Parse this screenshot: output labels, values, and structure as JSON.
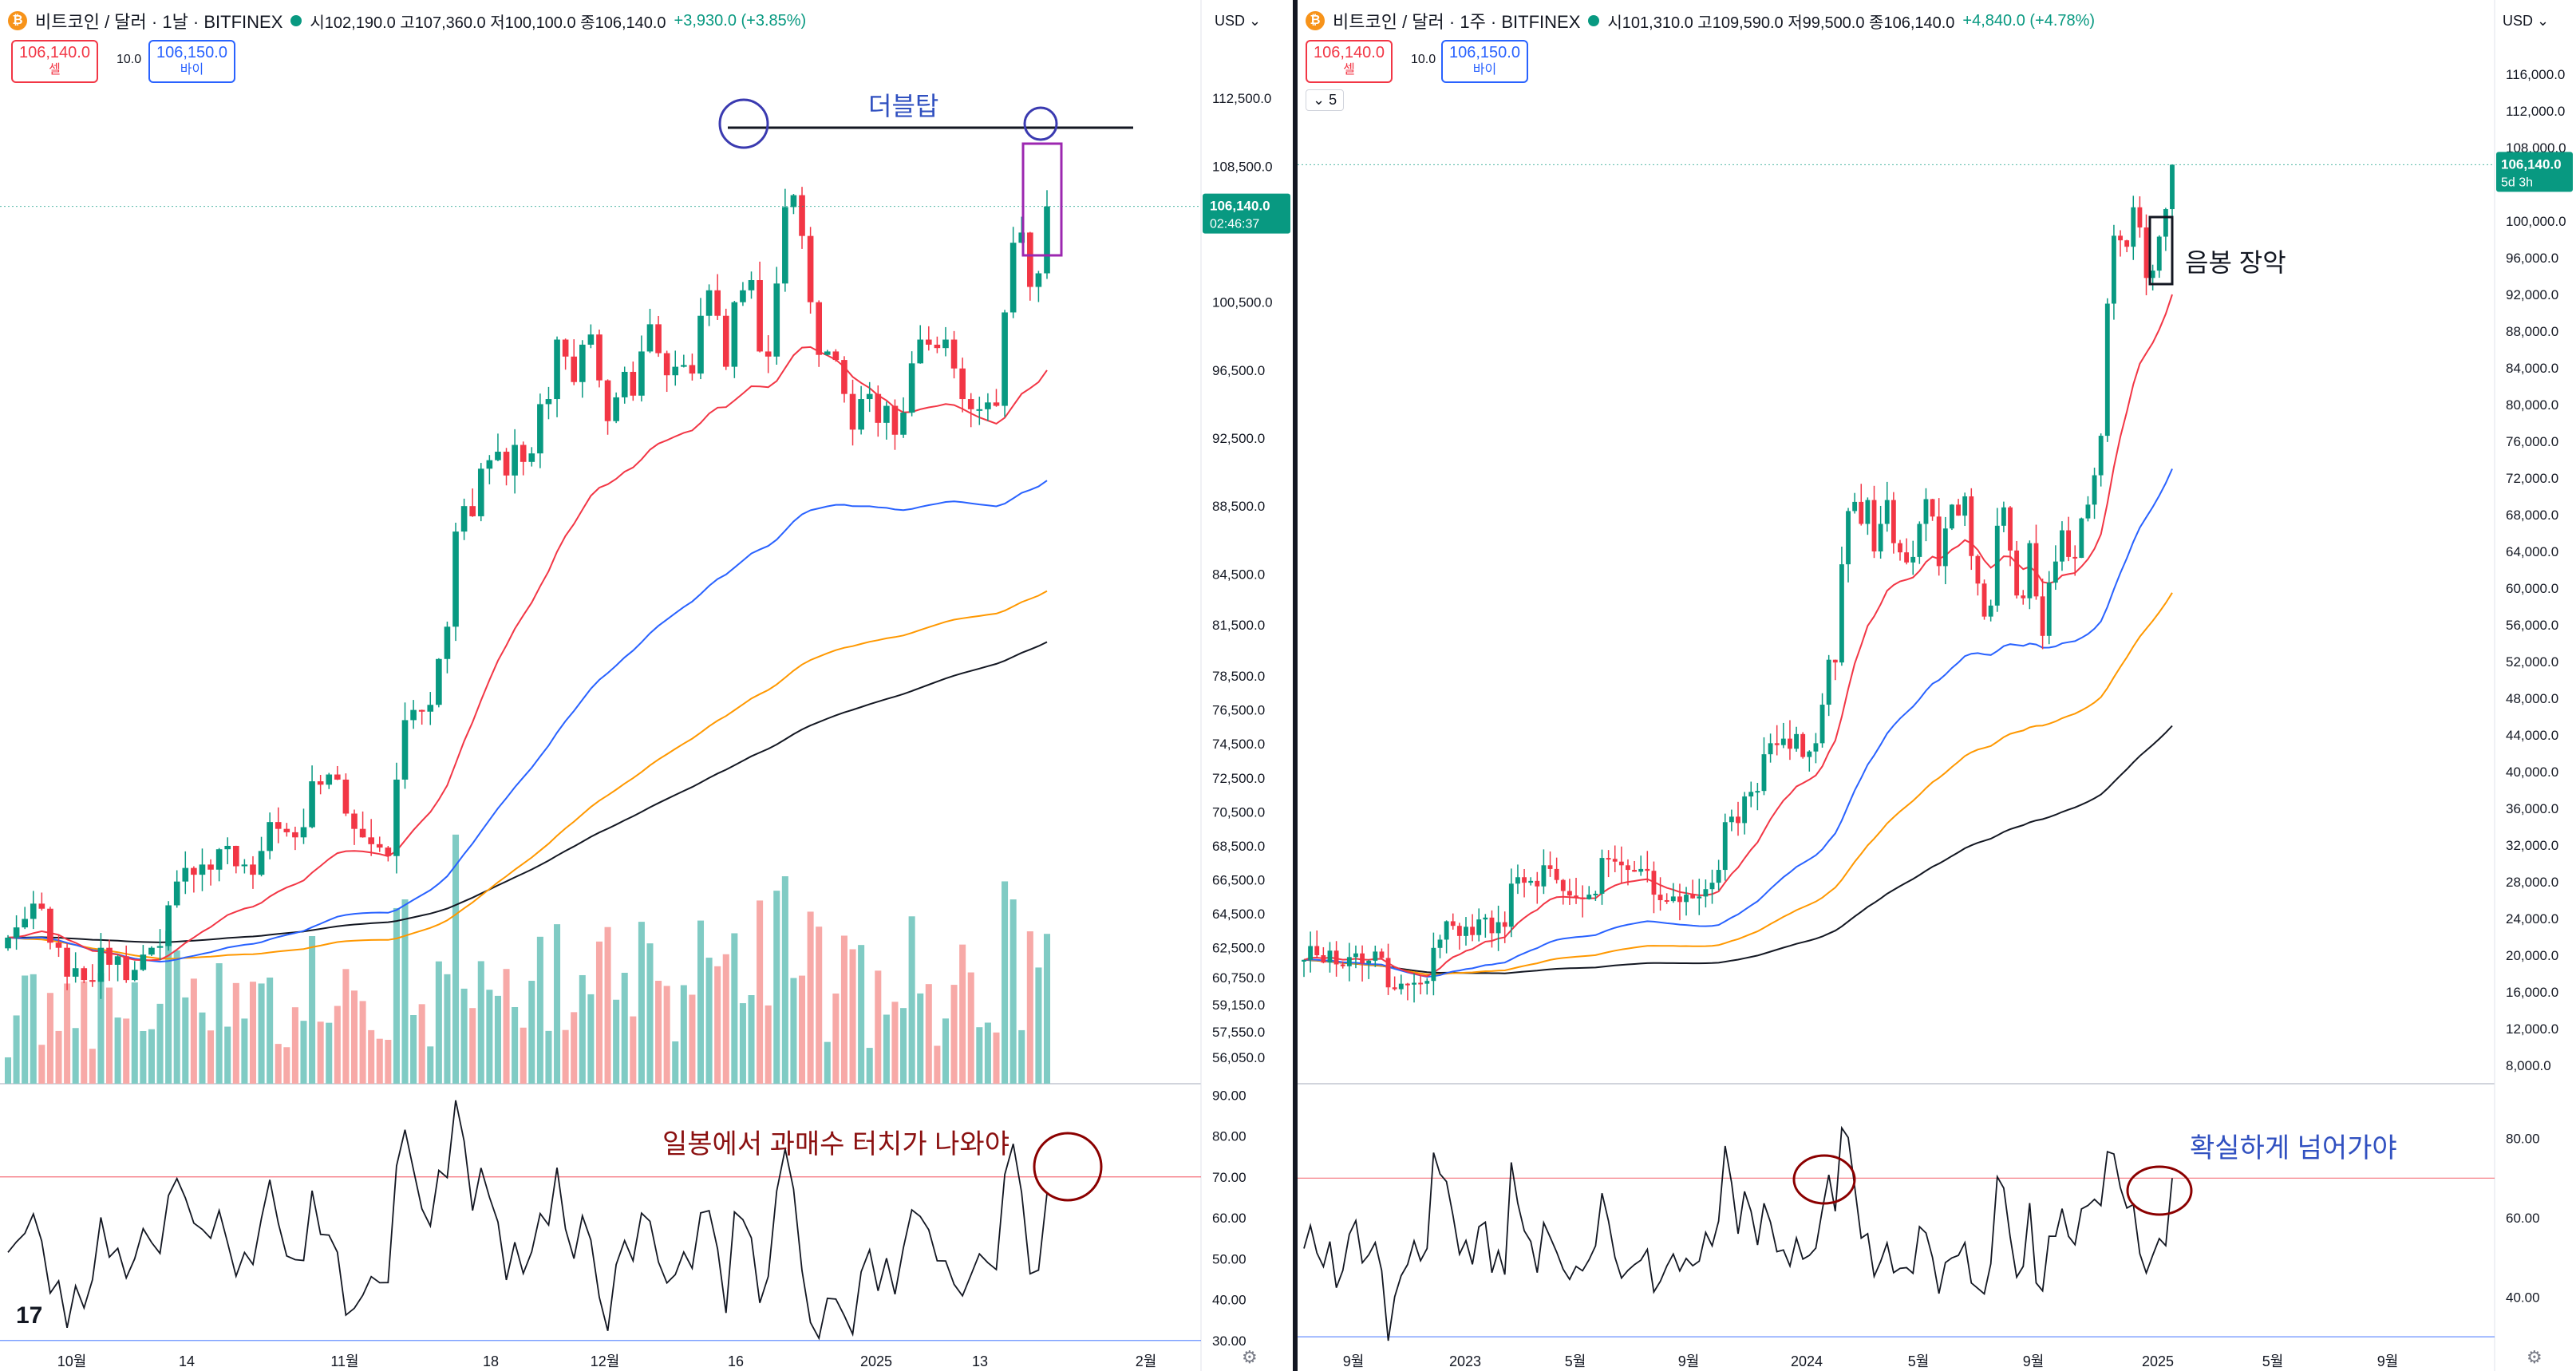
{
  "left": {
    "symbol": "비트코인 / 달러 · 1날 · BITFINEX",
    "ohlc_line": "시102,190.0 고107,360.0 저100,100.0 종106,140.0",
    "change": "+3,930.0 (+3.85%)",
    "sell_price": "106,140.0",
    "sell_label": "셀",
    "spread": "10.0",
    "buy_price": "106,150.0",
    "buy_label": "바이",
    "currency": "USD",
    "last_price": "106,140.0",
    "countdown": "02:46:37",
    "annotation_double_top": "더블탑",
    "annotation_rsi": "일봉에서 과매수 터치가 나와야"
  },
  "right": {
    "symbol": "비트코인 / 달러 · 1주 · BITFINEX",
    "ohlc_line": "시101,310.0 고109,590.0 저99,500.0 종106,140.0",
    "change": "+4,840.0 (+4.78%)",
    "sell_price": "106,140.0",
    "sell_label": "셀",
    "spread": "10.0",
    "buy_price": "106,150.0",
    "buy_label": "바이",
    "currency": "USD",
    "interval_badge": "5",
    "last_price": "106,140.0",
    "countdown": "5d 3h",
    "annotation_bear_candle": "음봉 장악",
    "annotation_rsi": "확실하게 넘어가야"
  },
  "colors": {
    "up": "#089981",
    "down": "#f23645",
    "ema20": "#f23645",
    "ema50": "#2962ff",
    "ema100": "#ff9800",
    "ema200": "#131722",
    "rsi_line": "#131722",
    "anno_blue": "#3050c0",
    "anno_red": "#8b0000"
  },
  "chart_data": [
    {
      "type": "candlestick",
      "title": "비트코인 / 달러 · 1날 · BITFINEX",
      "timeframe": "1D",
      "ylim": [
        54500,
        115000
      ],
      "y_ticks": [
        "112,500.0",
        "108,500.0",
        "100,500.0",
        "96,500.0",
        "92,500.0",
        "88,500.0",
        "84,500.0",
        "81,500.0",
        "78,500.0",
        "76,500.0",
        "74,500.0",
        "72,500.0",
        "70,500.0",
        "68,500.0",
        "66,500.0",
        "64,500.0",
        "62,500.0",
        "60,750.0",
        "59,150.0",
        "57,550.0",
        "56,050.0"
      ],
      "x_ticks": [
        "10월",
        "14",
        "11월",
        "18",
        "12월",
        "16",
        "2025",
        "13",
        "2월"
      ],
      "close": [
        63100,
        63700,
        64200,
        65100,
        64800,
        62800,
        62500,
        60800,
        61300,
        60600,
        60500,
        62500,
        61500,
        62000,
        60600,
        61200,
        62100,
        62500,
        62600,
        65000,
        66400,
        67200,
        66800,
        67400,
        67100,
        68300,
        68500,
        67300,
        67400,
        66800,
        68200,
        69900,
        69500,
        69300,
        69000,
        69600,
        72300,
        72100,
        72700,
        72400,
        70400,
        69500,
        69000,
        68600,
        68400,
        67900,
        72400,
        75900,
        76500,
        76400,
        76800,
        79500,
        81400,
        87000,
        88500,
        87900,
        90700,
        91200,
        91700,
        90300,
        92100,
        91100,
        91600,
        94500,
        94800,
        98300,
        97300,
        95800,
        98000,
        98600,
        95900,
        93500,
        94900,
        96400,
        95000,
        97600,
        99200,
        97500,
        96200,
        96700,
        96800,
        96300,
        99700,
        101200,
        99700,
        96700,
        100500,
        101200,
        101800,
        97600,
        97300,
        101600,
        106100,
        106800,
        104400,
        100500,
        97400,
        97600,
        97100,
        95100,
        93000,
        94800,
        95100,
        93400,
        94400,
        92700,
        94000,
        96900,
        98300,
        98000,
        97800,
        98300,
        96600,
        94800,
        94200,
        94200,
        94600,
        94400,
        99900,
        104000,
        104600,
        101400,
        102200,
        106140
      ],
      "ema20_end": 96500,
      "ema50_end": 90000,
      "ema100_end": 83500,
      "ema200_end": 80500,
      "rsi": {
        "ylim": [
          28,
          92
        ],
        "ticks": [
          "90.00",
          "80.00",
          "70.00",
          "60.00",
          "50.00",
          "40.00",
          "30.00"
        ],
        "overbought": 70,
        "oversold": 30,
        "last": 66
      },
      "annotations": [
        "더블탑",
        "일봉에서 과매수 터치가 나와야"
      ]
    },
    {
      "type": "candlestick",
      "title": "비트코인 / 달러 · 1주 · BITFINEX",
      "timeframe": "1W",
      "ylim": [
        6000,
        118000
      ],
      "y_ticks": [
        "116,000.0",
        "112,000.0",
        "108,000.0",
        "100,000.0",
        "96,000.0",
        "92,000.0",
        "88,000.0",
        "84,000.0",
        "80,000.0",
        "76,000.0",
        "72,000.0",
        "68,000.0",
        "64,000.0",
        "60,000.0",
        "56,000.0",
        "52,000.0",
        "48,000.0",
        "44,000.0",
        "40,000.0",
        "36,000.0",
        "32,000.0",
        "28,000.0",
        "24,000.0",
        "20,000.0",
        "16,000.0",
        "12,000.0",
        "8,000.0"
      ],
      "x_ticks": [
        "9월",
        "2023",
        "5월",
        "9월",
        "2024",
        "5월",
        "9월",
        "2025",
        "5월",
        "9월"
      ],
      "close": [
        19500,
        21000,
        20000,
        19200,
        20500,
        19000,
        18800,
        19800,
        20200,
        19100,
        19400,
        20400,
        19700,
        16500,
        16300,
        16900,
        16800,
        17000,
        16900,
        17200,
        20800,
        21700,
        23700,
        23200,
        22100,
        23100,
        22200,
        23900,
        24100,
        22400,
        23600,
        23100,
        27800,
        28500,
        27900,
        28100,
        27500,
        29800,
        29400,
        28200,
        27000,
        26500,
        26300,
        26100,
        26600,
        26700,
        30600,
        30500,
        30200,
        29800,
        29300,
        29100,
        29400,
        29200,
        26600,
        26000,
        25900,
        26400,
        25800,
        26600,
        26200,
        26400,
        27200,
        27900,
        29300,
        34500,
        35100,
        34400,
        37300,
        37800,
        37900,
        41900,
        43100,
        42900,
        43600,
        42500,
        44100,
        41600,
        42200,
        43100,
        47300,
        52200,
        51900,
        62600,
        68400,
        69400,
        67000,
        69600,
        64000,
        67000,
        69600,
        64900,
        63900,
        62800,
        63400,
        67000,
        69700,
        67800,
        62400,
        66500,
        69100,
        67900,
        70000,
        63500,
        60500,
        56900,
        58100,
        66800,
        68800,
        64100,
        59200,
        58900,
        64900,
        59100,
        54800,
        60600,
        62900,
        66300,
        63400,
        63300,
        67600,
        69100,
        72300,
        76600,
        91000,
        98400,
        97900,
        97200,
        101500,
        99300,
        93800,
        94600,
        98300,
        101300,
        106140
      ],
      "ema20_end": 92000,
      "ema50_end": 73000,
      "ema100_end": 59500,
      "ema200_end": 45000,
      "rsi": {
        "ylim": [
          27,
          93
        ],
        "ticks": [
          "80.00",
          "60.00",
          "40.00"
        ],
        "overbought": 70,
        "oversold": 30,
        "last": 70
      },
      "annotations": [
        "음봉 장악",
        "확실하게 넘어가야"
      ]
    }
  ]
}
